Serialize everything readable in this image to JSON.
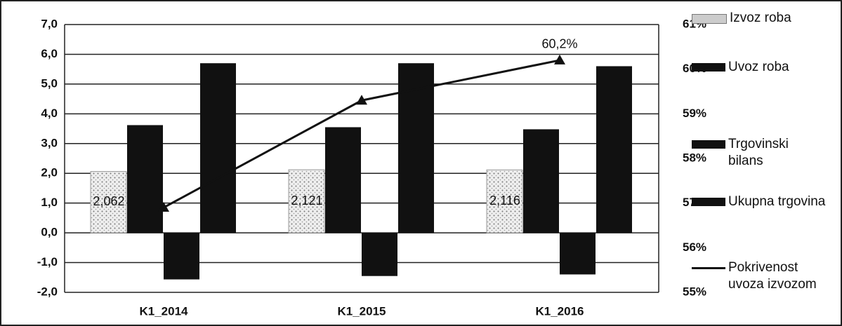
{
  "chart_data": {
    "type": "bar",
    "categories": [
      "K1_2014",
      "K1_2015",
      "K1_2016"
    ],
    "series": [
      {
        "name": "Izvoz roba",
        "color": "#d9d9d9",
        "values": [
          2.062,
          2.121,
          2.116
        ],
        "value_labels": [
          "2,062",
          "2,121",
          "2,116"
        ]
      },
      {
        "name": "Uvoz roba",
        "color": "#111111",
        "values": [
          3.62,
          3.55,
          3.48
        ]
      },
      {
        "name": "Trgovinski bilans",
        "color": "#111111",
        "values": [
          -1.565,
          -1.451,
          -1.398
        ]
      },
      {
        "name": "Ukupna trgovina",
        "color": "#111111",
        "values": [
          5.7,
          5.7,
          5.6
        ]
      },
      {
        "name": "Pokrivenost uvoza izvozom",
        "type": "line",
        "axis": "y2",
        "color": "#111111",
        "values": [
          56.9,
          59.3,
          60.2
        ],
        "value_labels": [
          null,
          null,
          "60,2%"
        ]
      }
    ],
    "ylim": [
      -2,
      7
    ],
    "yticks": [
      {
        "value": -2,
        "label": "-2,0"
      },
      {
        "value": -1,
        "label": "-1,0"
      },
      {
        "value": 0,
        "label": "0,0"
      },
      {
        "value": 1,
        "label": "1,0"
      },
      {
        "value": 2,
        "label": "2,0"
      },
      {
        "value": 3,
        "label": "3,0"
      },
      {
        "value": 4,
        "label": "4,0"
      },
      {
        "value": 5,
        "label": "5,0"
      },
      {
        "value": 6,
        "label": "6,0"
      },
      {
        "value": 7,
        "label": "7,0"
      }
    ],
    "y2lim": [
      55,
      61
    ],
    "y2ticks": [
      {
        "value": 55,
        "label": "55%"
      },
      {
        "value": 56,
        "label": "56%"
      },
      {
        "value": 57,
        "label": "57%"
      },
      {
        "value": 58,
        "label": "58%"
      },
      {
        "value": 59,
        "label": "59%"
      },
      {
        "value": 60,
        "label": "60%"
      },
      {
        "value": 61,
        "label": "61%"
      }
    ],
    "grid": true
  }
}
